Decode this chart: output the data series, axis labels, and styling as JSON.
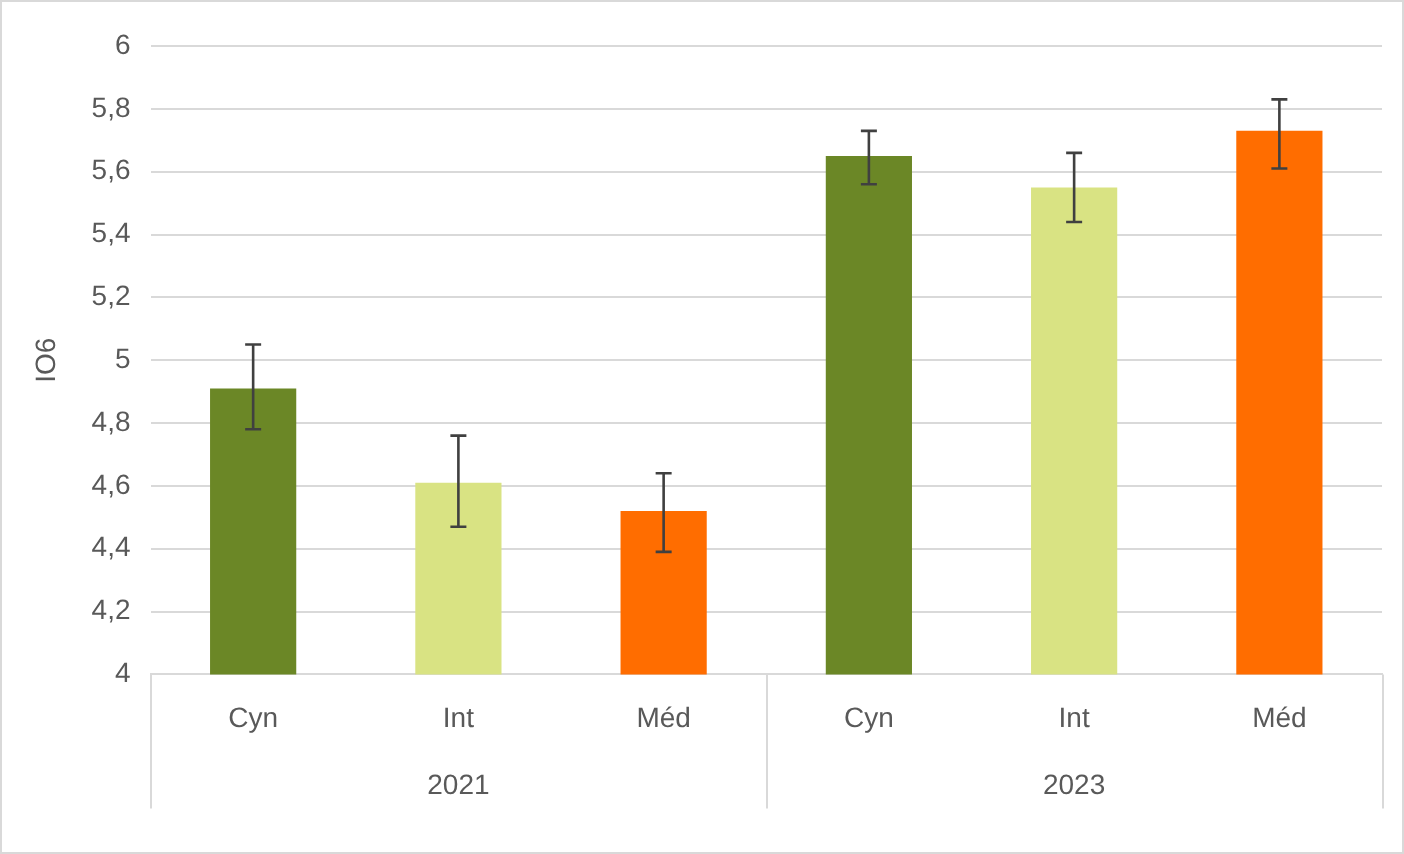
{
  "chart_data": {
    "type": "bar",
    "ylabel": "IO6",
    "categories": [
      "Cyn",
      "Int",
      "Méd",
      "Cyn",
      "Int",
      "Méd"
    ],
    "values": [
      4.91,
      4.61,
      4.52,
      5.65,
      5.55,
      5.73
    ],
    "colors": [
      "#6b8726",
      "#d9e383",
      "#ff6d00",
      "#6b8726",
      "#d9e383",
      "#ff6d00"
    ],
    "errors": [
      [
        4.78,
        5.05
      ],
      [
        4.47,
        4.76
      ],
      [
        4.39,
        4.64
      ],
      [
        5.56,
        5.73
      ],
      [
        5.44,
        5.66
      ],
      [
        5.61,
        5.83
      ]
    ],
    "ylim": [
      4,
      6
    ],
    "yticks": [
      4,
      {
        "value": 4.2,
        "label": "4,2"
      },
      {
        "value": 4.4,
        "label": "4,4"
      },
      {
        "value": 4.6,
        "label": "4,6"
      },
      {
        "value": 4.8,
        "label": "4,8"
      },
      5,
      {
        "value": 5.2,
        "label": "5,2"
      },
      {
        "value": 5.4,
        "label": "5,4"
      },
      {
        "value": 5.6,
        "label": "5,6"
      },
      {
        "value": 5.8,
        "label": "5,8"
      },
      6
    ],
    "grid": "y",
    "legend": false,
    "annotations": [
      "2021",
      "2023"
    ]
  }
}
